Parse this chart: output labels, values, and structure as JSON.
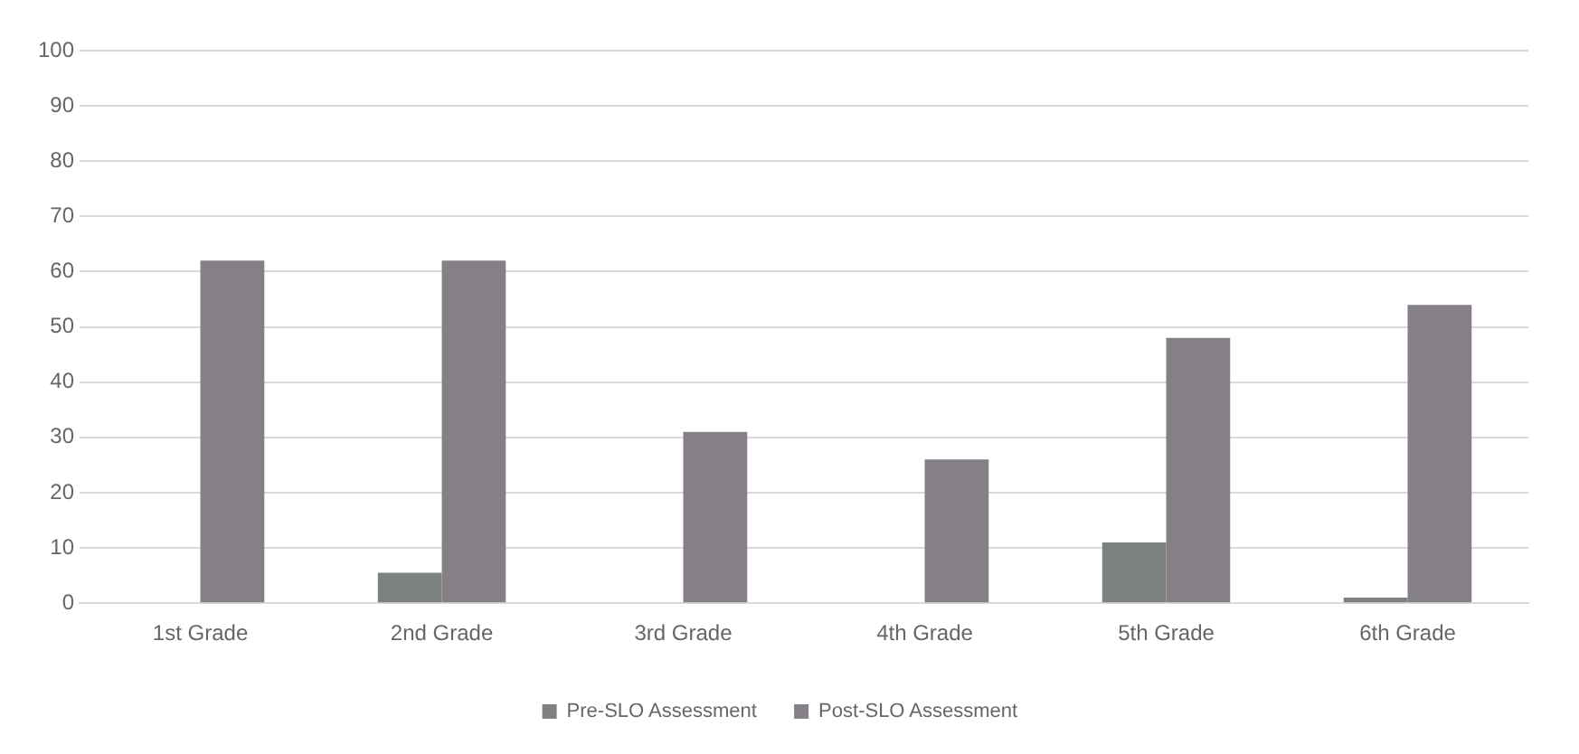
{
  "chart_data": {
    "type": "bar",
    "categories": [
      "1st Grade",
      "2nd Grade",
      "3rd Grade",
      "4th Grade",
      "5th Grade",
      "6th Grade"
    ],
    "series": [
      {
        "name": "Pre-SLO Assessment",
        "color": "#7d8180",
        "values": [
          0,
          5.5,
          0,
          0,
          11,
          1
        ]
      },
      {
        "name": "Post-SLO Assessment",
        "color": "#857f87",
        "values": [
          62,
          62,
          31,
          26,
          48,
          54
        ]
      }
    ],
    "ylim": [
      0,
      100
    ],
    "yticks": [
      0,
      10,
      20,
      30,
      40,
      50,
      60,
      70,
      80,
      90,
      100
    ],
    "grid": "y",
    "legend": "bottom"
  }
}
